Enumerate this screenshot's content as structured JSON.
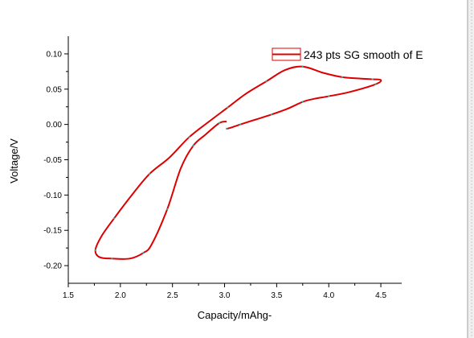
{
  "chart_data": {
    "type": "line",
    "xlabel": "Capacity/mAhg-",
    "ylabel": "Voltage/V",
    "xlim": [
      1.5,
      4.7
    ],
    "ylim": [
      -0.225,
      0.125
    ],
    "x_ticks": [
      1.5,
      2.0,
      2.5,
      3.0,
      3.5,
      4.0,
      4.5
    ],
    "x_tick_labels": [
      "1.5",
      "2.0",
      "2.5",
      "3.0",
      "3.5",
      "4.0",
      "4.5"
    ],
    "y_ticks": [
      -0.2,
      -0.15,
      -0.1,
      -0.05,
      0.0,
      0.05,
      0.1
    ],
    "y_tick_labels": [
      "-0.20",
      "-0.15",
      "-0.10",
      "-0.05",
      "0.00",
      "0.05",
      "0.10"
    ],
    "grid": false,
    "legend_position": "top-right",
    "series": [
      {
        "name": "243 pts SG smooth of E",
        "color": "#dd0000",
        "marker_color": "#3fa7a0",
        "x": [
          3.02,
          3.05,
          3.15,
          3.3,
          3.45,
          3.6,
          3.75,
          3.85,
          4.0,
          4.2,
          4.45,
          4.5,
          4.42,
          4.3,
          4.13,
          3.95,
          3.75,
          3.58,
          3.4,
          3.2,
          3.03,
          2.85,
          2.66,
          2.47,
          2.28,
          2.11,
          1.94,
          1.82,
          1.76,
          1.8,
          1.92,
          2.09,
          2.22,
          2.3,
          2.45,
          2.58,
          2.7,
          2.82,
          2.95,
          3.02
        ],
        "y": [
          -0.006,
          -0.005,
          0.0,
          0.007,
          0.014,
          0.022,
          0.032,
          0.036,
          0.04,
          0.046,
          0.057,
          0.063,
          0.064,
          0.065,
          0.067,
          0.073,
          0.082,
          0.077,
          0.061,
          0.043,
          0.024,
          0.004,
          -0.018,
          -0.047,
          -0.07,
          -0.1,
          -0.133,
          -0.158,
          -0.178,
          -0.188,
          -0.19,
          -0.19,
          -0.182,
          -0.17,
          -0.12,
          -0.062,
          -0.03,
          -0.014,
          0.002,
          0.004
        ]
      }
    ]
  }
}
